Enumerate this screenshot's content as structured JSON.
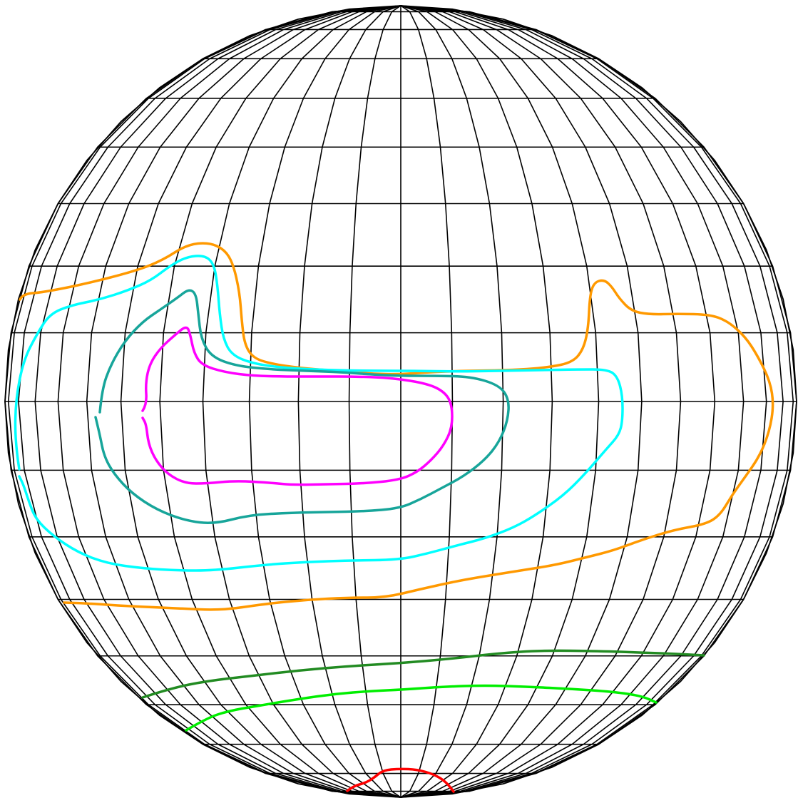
{
  "projection": {
    "type": "polar-globe-graticule",
    "grid_color": "#000000",
    "meridians_per_hemisphere": 12,
    "latitude_step_deg": 10
  },
  "contours": [
    {
      "id": "red",
      "color": "#ff0000",
      "points": [
        [
          487,
          1109
        ],
        [
          496,
          1102
        ],
        [
          512,
          1098
        ],
        [
          524,
          1091
        ],
        [
          537,
          1080
        ],
        [
          560,
          1078
        ],
        [
          585,
          1079
        ],
        [
          609,
          1086
        ],
        [
          625,
          1096
        ],
        [
          636,
          1110
        ]
      ]
    },
    {
      "id": "lime",
      "color": "#00ee00",
      "points": [
        [
          261,
          1024
        ],
        [
          290,
          1007
        ],
        [
          320,
          997
        ],
        [
          360,
          990
        ],
        [
          420,
          980
        ],
        [
          470,
          973
        ],
        [
          520,
          969
        ],
        [
          565,
          967
        ],
        [
          620,
          963
        ],
        [
          680,
          961
        ],
        [
          740,
          963
        ],
        [
          800,
          966
        ],
        [
          860,
          970
        ],
        [
          900,
          976
        ],
        [
          920,
          985
        ]
      ]
    },
    {
      "id": "forest-green",
      "color": "#228b22",
      "points": [
        [
          200,
          978
        ],
        [
          240,
          965
        ],
        [
          290,
          955
        ],
        [
          350,
          948
        ],
        [
          420,
          940
        ],
        [
          490,
          934
        ],
        [
          560,
          930
        ],
        [
          630,
          924
        ],
        [
          700,
          916
        ],
        [
          760,
          912
        ],
        [
          840,
          913
        ],
        [
          900,
          915
        ],
        [
          950,
          917
        ],
        [
          987,
          919
        ]
      ]
    },
    {
      "id": "orange",
      "color": "#ff9900",
      "points": [
        [
          28,
          420
        ],
        [
          32,
          412
        ],
        [
          60,
          410
        ],
        [
          120,
          398
        ],
        [
          190,
          380
        ],
        [
          228,
          365
        ],
        [
          262,
          343
        ],
        [
          293,
          340
        ],
        [
          315,
          350
        ],
        [
          327,
          370
        ],
        [
          336,
          410
        ],
        [
          339,
          450
        ],
        [
          343,
          483
        ],
        [
          355,
          502
        ],
        [
          380,
          510
        ],
        [
          420,
          516
        ],
        [
          470,
          520
        ],
        [
          520,
          524
        ],
        [
          560,
          525
        ],
        [
          600,
          522
        ],
        [
          650,
          520
        ],
        [
          720,
          519
        ],
        [
          770,
          515
        ],
        [
          803,
          508
        ],
        [
          818,
          490
        ],
        [
          825,
          460
        ],
        [
          827,
          415
        ],
        [
          833,
          396
        ],
        [
          847,
          392
        ],
        [
          858,
          402
        ],
        [
          868,
          418
        ],
        [
          885,
          436
        ],
        [
          910,
          441
        ],
        [
          950,
          440
        ],
        [
          995,
          441
        ],
        [
          1020,
          450
        ],
        [
          1045,
          472
        ],
        [
          1063,
          500
        ],
        [
          1080,
          535
        ],
        [
          1085,
          568
        ],
        [
          1079,
          605
        ],
        [
          1065,
          640
        ],
        [
          1044,
          670
        ],
        [
          1026,
          695
        ],
        [
          1010,
          722
        ],
        [
          990,
          735
        ],
        [
          945,
          743
        ],
        [
          900,
          757
        ],
        [
          860,
          772
        ],
        [
          820,
          782
        ],
        [
          780,
          792
        ],
        [
          730,
          800
        ],
        [
          680,
          808
        ],
        [
          640,
          815
        ],
        [
          590,
          826
        ],
        [
          540,
          838
        ],
        [
          490,
          838
        ],
        [
          430,
          841
        ],
        [
          370,
          847
        ],
        [
          310,
          856
        ],
        [
          250,
          853
        ],
        [
          180,
          850
        ],
        [
          120,
          846
        ],
        [
          90,
          845
        ]
      ]
    },
    {
      "id": "cyan",
      "color": "#00ffff",
      "points": [
        [
          27,
          658
        ],
        [
          21,
          620
        ],
        [
          22,
          560
        ],
        [
          33,
          505
        ],
        [
          52,
          468
        ],
        [
          70,
          440
        ],
        [
          100,
          428
        ],
        [
          140,
          420
        ],
        [
          180,
          407
        ],
        [
          212,
          393
        ],
        [
          238,
          373
        ],
        [
          262,
          360
        ],
        [
          287,
          358
        ],
        [
          300,
          370
        ],
        [
          305,
          400
        ],
        [
          308,
          440
        ],
        [
          313,
          475
        ],
        [
          325,
          498
        ],
        [
          355,
          510
        ],
        [
          400,
          516
        ],
        [
          460,
          519
        ],
        [
          520,
          520
        ],
        [
          580,
          520
        ],
        [
          640,
          521
        ],
        [
          700,
          520
        ],
        [
          760,
          519
        ],
        [
          810,
          518
        ],
        [
          852,
          518
        ],
        [
          866,
          528
        ],
        [
          873,
          555
        ],
        [
          873,
          590
        ],
        [
          868,
          610
        ],
        [
          850,
          630
        ],
        [
          820,
          665
        ],
        [
          790,
          695
        ],
        [
          750,
          723
        ],
        [
          720,
          740
        ],
        [
          680,
          755
        ],
        [
          640,
          765
        ],
        [
          600,
          776
        ],
        [
          560,
          785
        ],
        [
          490,
          786
        ],
        [
          430,
          788
        ],
        [
          370,
          792
        ],
        [
          300,
          800
        ],
        [
          250,
          800
        ],
        [
          200,
          797
        ],
        [
          150,
          790
        ],
        [
          110,
          775
        ],
        [
          75,
          752
        ],
        [
          50,
          728
        ],
        [
          40,
          702
        ],
        [
          33,
          680
        ],
        [
          27,
          668
        ]
      ]
    },
    {
      "id": "teal",
      "color": "#17a59a",
      "points": [
        [
          140,
          578
        ],
        [
          143,
          546
        ],
        [
          155,
          512
        ],
        [
          175,
          478
        ],
        [
          200,
          451
        ],
        [
          225,
          434
        ],
        [
          248,
          418
        ],
        [
          265,
          405
        ],
        [
          275,
          412
        ],
        [
          278,
          440
        ],
        [
          282,
          475
        ],
        [
          296,
          500
        ],
        [
          330,
          513
        ],
        [
          380,
          518
        ],
        [
          430,
          520
        ],
        [
          480,
          522
        ],
        [
          520,
          525
        ],
        [
          560,
          527
        ],
        [
          610,
          527
        ],
        [
          660,
          528
        ],
        [
          700,
          540
        ],
        [
          714,
          560
        ],
        [
          712,
          590
        ],
        [
          700,
          620
        ],
        [
          680,
          645
        ],
        [
          650,
          668
        ],
        [
          620,
          684
        ],
        [
          590,
          700
        ],
        [
          560,
          713
        ],
        [
          510,
          717
        ],
        [
          460,
          718
        ],
        [
          410,
          719
        ],
        [
          350,
          722
        ],
        [
          300,
          735
        ],
        [
          260,
          730
        ],
        [
          220,
          715
        ],
        [
          185,
          692
        ],
        [
          160,
          665
        ],
        [
          146,
          640
        ],
        [
          140,
          610
        ],
        [
          134,
          585
        ]
      ]
    },
    {
      "id": "magenta",
      "color": "#ff00ff",
      "points": [
        [
          200,
          576
        ],
        [
          206,
          567
        ],
        [
          204,
          537
        ],
        [
          210,
          510
        ],
        [
          225,
          488
        ],
        [
          245,
          470
        ],
        [
          262,
          456
        ],
        [
          267,
          470
        ],
        [
          272,
          495
        ],
        [
          283,
          512
        ],
        [
          315,
          522
        ],
        [
          355,
          527
        ],
        [
          400,
          528
        ],
        [
          450,
          528
        ],
        [
          500,
          528
        ],
        [
          550,
          530
        ],
        [
          600,
          538
        ],
        [
          624,
          550
        ],
        [
          634,
          568
        ],
        [
          634,
          600
        ],
        [
          622,
          625
        ],
        [
          605,
          645
        ],
        [
          585,
          662
        ],
        [
          560,
          673
        ],
        [
          510,
          678
        ],
        [
          460,
          679
        ],
        [
          410,
          680
        ],
        [
          380,
          677
        ],
        [
          330,
          674
        ],
        [
          290,
          678
        ],
        [
          260,
          678
        ],
        [
          235,
          665
        ],
        [
          218,
          645
        ],
        [
          208,
          622
        ],
        [
          205,
          595
        ],
        [
          200,
          586
        ]
      ]
    }
  ]
}
